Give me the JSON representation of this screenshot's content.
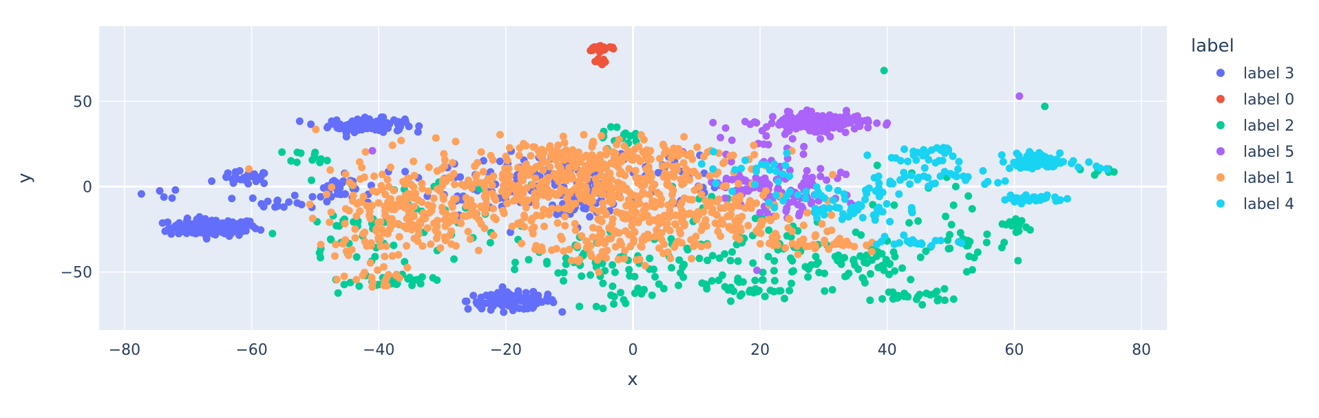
{
  "chart_data": {
    "type": "scatter",
    "xlabel": "x",
    "ylabel": "y",
    "xlim": [
      -84,
      84
    ],
    "ylim": [
      -84,
      94
    ],
    "x_ticks": [
      -80,
      -60,
      -40,
      -20,
      0,
      20,
      40,
      60,
      80
    ],
    "y_ticks": [
      -50,
      0,
      50
    ],
    "grid": true,
    "legend": {
      "title": "label",
      "placement": "right"
    },
    "colors": {
      "plot_bg": "#e5ecf6",
      "grid": "#ffffff",
      "text": "#2a3f5f"
    },
    "series": [
      {
        "name": "label 3",
        "color": "#636efa",
        "clusters": [
          {
            "cx": -66,
            "cy": -24,
            "sx": 3.5,
            "sy": 2.5,
            "n": 160
          },
          {
            "cx": -42,
            "cy": 36,
            "sx": 3.0,
            "sy": 2.0,
            "n": 110
          },
          {
            "cx": -19,
            "cy": -67,
            "sx": 3.5,
            "sy": 2.5,
            "n": 130
          },
          {
            "cx": -61,
            "cy": 5,
            "sx": 2.0,
            "sy": 2.0,
            "n": 30
          },
          {
            "cx": -46,
            "cy": -2,
            "sx": 2.0,
            "sy": 4.0,
            "n": 35
          },
          {
            "cx": -56,
            "cy": -9,
            "sx": 2.5,
            "sy": 2.0,
            "n": 15
          },
          {
            "cx": -74,
            "cy": -4,
            "sx": 1.5,
            "sy": 1.5,
            "n": 5
          },
          {
            "cx": -7,
            "cy": -8,
            "sx": 3.0,
            "sy": 4.0,
            "n": 40
          },
          {
            "cx": -14,
            "cy": 5,
            "sx": 6.0,
            "sy": 7.0,
            "n": 60
          },
          {
            "cx": -25,
            "cy": -5,
            "sx": 8.0,
            "sy": 12.0,
            "n": 40
          },
          {
            "cx": 8,
            "cy": 5,
            "sx": 6.0,
            "sy": 10.0,
            "n": 20
          }
        ]
      },
      {
        "name": "label 0",
        "color": "#ef553b",
        "clusters": [
          {
            "cx": -5,
            "cy": 81,
            "sx": 1.2,
            "sy": 0.8,
            "n": 30
          },
          {
            "cx": -5,
            "cy": 73,
            "sx": 0.5,
            "sy": 2.5,
            "n": 8
          }
        ]
      },
      {
        "name": "label 2",
        "color": "#00cc96",
        "clusters": [
          {
            "cx": -38,
            "cy": -55,
            "sx": 3.0,
            "sy": 2.0,
            "n": 30
          },
          {
            "cx": -50,
            "cy": 18,
            "sx": 2.0,
            "sy": 2.0,
            "n": 12
          },
          {
            "cx": -45,
            "cy": -30,
            "sx": 4.0,
            "sy": 10.0,
            "n": 25
          },
          {
            "cx": -10,
            "cy": -45,
            "sx": 10.0,
            "sy": 8.0,
            "n": 40
          },
          {
            "cx": 5,
            "cy": -45,
            "sx": 8.0,
            "sy": 8.0,
            "n": 40
          },
          {
            "cx": 18,
            "cy": -60,
            "sx": 5.0,
            "sy": 5.0,
            "n": 35
          },
          {
            "cx": 30,
            "cy": -45,
            "sx": 6.0,
            "sy": 10.0,
            "n": 40
          },
          {
            "cx": 44,
            "cy": -64,
            "sx": 3.0,
            "sy": 2.0,
            "n": 25
          },
          {
            "cx": 38,
            "cy": -45,
            "sx": 3.0,
            "sy": 4.0,
            "n": 30
          },
          {
            "cx": 52,
            "cy": -35,
            "sx": 4.0,
            "sy": 8.0,
            "n": 25
          },
          {
            "cx": 60,
            "cy": -22,
            "sx": 2.0,
            "sy": 2.0,
            "n": 15
          },
          {
            "cx": 48,
            "cy": -10,
            "sx": 6.0,
            "sy": 10.0,
            "n": 15
          },
          {
            "cx": -3,
            "cy": 30,
            "sx": 2.0,
            "sy": 3.0,
            "n": 15
          },
          {
            "cx": -30,
            "cy": -20,
            "sx": 12.0,
            "sy": 15.0,
            "n": 30
          },
          {
            "cx": 20,
            "cy": -25,
            "sx": 10.0,
            "sy": 12.0,
            "n": 30
          },
          {
            "cx": 73,
            "cy": 9,
            "sx": 1.5,
            "sy": 1.0,
            "n": 6
          },
          {
            "cx": -2,
            "cy": -65,
            "sx": 3.0,
            "sy": 3.0,
            "n": 12
          }
        ]
      },
      {
        "name": "label 5",
        "color": "#ab63fa",
        "clusters": [
          {
            "cx": 29,
            "cy": 38,
            "sx": 4.0,
            "sy": 2.5,
            "n": 170
          },
          {
            "cx": 18,
            "cy": 0,
            "sx": 3.0,
            "sy": 5.0,
            "n": 50
          },
          {
            "cx": 26,
            "cy": -10,
            "sx": 4.0,
            "sy": 6.0,
            "n": 40
          },
          {
            "cx": 20,
            "cy": 25,
            "sx": 5.0,
            "sy": 5.0,
            "n": 25
          },
          {
            "cx": 28,
            "cy": 5,
            "sx": 4.0,
            "sy": 4.0,
            "n": 20
          }
        ]
      },
      {
        "name": "label 1",
        "color": "#ffa15a",
        "clusters": [
          {
            "cx": -12,
            "cy": 5,
            "sx": 10.0,
            "sy": 12.0,
            "n": 360
          },
          {
            "cx": -30,
            "cy": -15,
            "sx": 9.0,
            "sy": 12.0,
            "n": 150
          },
          {
            "cx": 2,
            "cy": -20,
            "sx": 7.0,
            "sy": 10.0,
            "n": 160
          },
          {
            "cx": -40,
            "cy": -20,
            "sx": 5.0,
            "sy": 15.0,
            "n": 80
          },
          {
            "cx": 5,
            "cy": 15,
            "sx": 8.0,
            "sy": 8.0,
            "n": 70
          },
          {
            "cx": 12,
            "cy": -15,
            "sx": 6.0,
            "sy": 8.0,
            "n": 60
          },
          {
            "cx": -6,
            "cy": -38,
            "sx": 5.0,
            "sy": 5.0,
            "n": 40
          },
          {
            "cx": 28,
            "cy": -33,
            "sx": 4.0,
            "sy": 3.0,
            "n": 40
          },
          {
            "cx": 22,
            "cy": -20,
            "sx": 6.0,
            "sy": 8.0,
            "n": 30
          },
          {
            "cx": -40,
            "cy": -53,
            "sx": 3.0,
            "sy": 3.0,
            "n": 15
          },
          {
            "cx": -4,
            "cy": 17,
            "sx": 4.0,
            "sy": 3.0,
            "n": 30
          }
        ]
      },
      {
        "name": "label 4",
        "color": "#19d3f3",
        "clusters": [
          {
            "cx": 64,
            "cy": 15,
            "sx": 3.0,
            "sy": 2.5,
            "n": 60
          },
          {
            "cx": 63,
            "cy": -7,
            "sx": 2.5,
            "sy": 1.5,
            "n": 30
          },
          {
            "cx": 44,
            "cy": 17,
            "sx": 3.0,
            "sy": 2.0,
            "n": 20
          },
          {
            "cx": 47,
            "cy": 22,
            "sx": 2.0,
            "sy": 1.0,
            "n": 10
          },
          {
            "cx": 34,
            "cy": -15,
            "sx": 4.0,
            "sy": 3.0,
            "n": 30
          },
          {
            "cx": 30,
            "cy": -5,
            "sx": 6.0,
            "sy": 4.0,
            "n": 30
          },
          {
            "cx": 44,
            "cy": -32,
            "sx": 3.0,
            "sy": 2.0,
            "n": 20
          },
          {
            "cx": 52,
            "cy": 4,
            "sx": 4.0,
            "sy": 3.0,
            "n": 20
          },
          {
            "cx": 40,
            "cy": 5,
            "sx": 3.0,
            "sy": 3.0,
            "n": 15
          },
          {
            "cx": 20,
            "cy": 10,
            "sx": 5.0,
            "sy": 5.0,
            "n": 20
          },
          {
            "cx": 72,
            "cy": 10,
            "sx": 1.5,
            "sy": 1.0,
            "n": 5
          }
        ]
      }
    ],
    "extra_points": [
      {
        "series": "label 2",
        "x": 39.5,
        "y": 68
      },
      {
        "series": "label 2",
        "x": 64.8,
        "y": 47
      },
      {
        "series": "label 5",
        "x": 60.8,
        "y": 53
      },
      {
        "series": "label 5",
        "x": -41,
        "y": 21
      },
      {
        "series": "label 5",
        "x": 19.5,
        "y": -49
      }
    ]
  }
}
